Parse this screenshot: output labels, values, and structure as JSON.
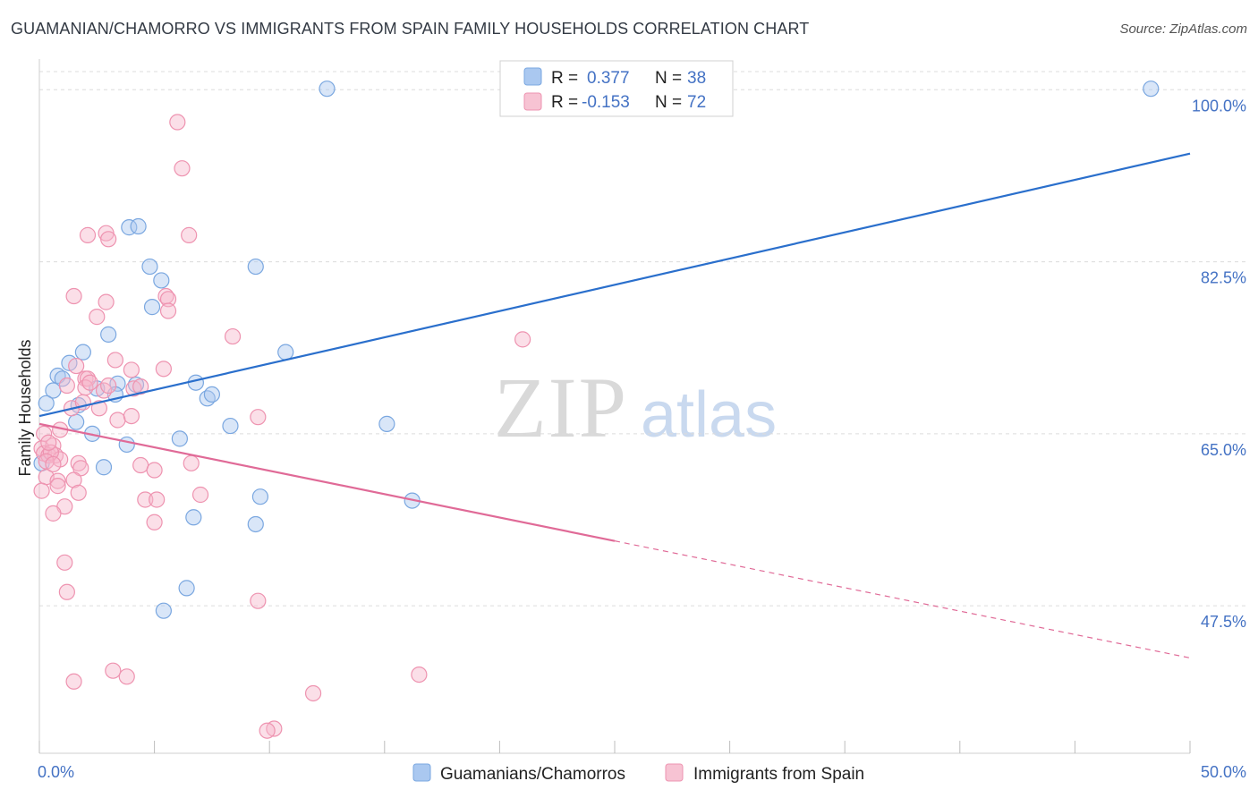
{
  "header": {
    "title": "GUAMANIAN/CHAMORRO VS IMMIGRANTS FROM SPAIN FAMILY HOUSEHOLDS CORRELATION CHART",
    "source": "Source: ZipAtlas.com"
  },
  "watermark": {
    "zip": "ZIP",
    "atlas": "atlas"
  },
  "legend": {
    "rows": [
      {
        "r_label": "R =",
        "r_value": "0.377",
        "n_label": "N =",
        "n_value": "38",
        "color": "#8fb4e8"
      },
      {
        "r_label": "R =",
        "r_value": "-0.153",
        "n_label": "N =",
        "n_value": "72",
        "color": "#f4a8c0"
      }
    ]
  },
  "colors": {
    "blue_fill": "#aac8f0",
    "blue_stroke": "#7aa7e0",
    "blue_line": "#2a6fcc",
    "pink_fill": "#f7b9cb",
    "pink_stroke": "#ee93b0",
    "pink_line": "#e06a97",
    "tick": "#4472c4"
  },
  "chart_data": {
    "type": "scatter",
    "title": "GUAMANIAN/CHAMORRO VS IMMIGRANTS FROM SPAIN FAMILY HOUSEHOLDS CORRELATION CHART",
    "xlabel": "",
    "ylabel": "Family Households",
    "xlim": [
      0,
      50
    ],
    "ylim": [
      32.5,
      103.3
    ],
    "x_tick_labels": [
      "0.0%",
      "50.0%"
    ],
    "y_ticks": [
      47.5,
      65.0,
      82.5,
      100.0
    ],
    "y_tick_labels": [
      "47.5%",
      "65.0%",
      "82.5%",
      "100.0%"
    ],
    "grid": true,
    "series": [
      {
        "name": "Guamanians/Chamorros",
        "color": "#8fb4e8",
        "R": 0.377,
        "N": 38,
        "trend": {
          "x0": 0,
          "y0": 66.8,
          "x1": 50,
          "y1": 93.5
        },
        "points": [
          [
            12.5,
            100.1
          ],
          [
            48.3,
            100.1
          ],
          [
            3.9,
            86.0
          ],
          [
            4.3,
            86.1
          ],
          [
            4.8,
            82.0
          ],
          [
            5.3,
            80.6
          ],
          [
            9.4,
            82.0
          ],
          [
            4.9,
            77.9
          ],
          [
            3.0,
            75.1
          ],
          [
            1.9,
            73.3
          ],
          [
            10.7,
            73.3
          ],
          [
            1.3,
            72.2
          ],
          [
            0.8,
            70.9
          ],
          [
            1.0,
            70.6
          ],
          [
            0.6,
            69.4
          ],
          [
            2.5,
            69.6
          ],
          [
            3.4,
            70.1
          ],
          [
            4.2,
            70.0
          ],
          [
            6.8,
            70.2
          ],
          [
            0.3,
            68.1
          ],
          [
            1.7,
            67.9
          ],
          [
            7.3,
            68.6
          ],
          [
            7.5,
            69.0
          ],
          [
            3.3,
            69.0
          ],
          [
            1.6,
            66.2
          ],
          [
            8.3,
            65.8
          ],
          [
            2.3,
            65.0
          ],
          [
            6.1,
            64.5
          ],
          [
            3.8,
            63.9
          ],
          [
            15.1,
            66.0
          ],
          [
            0.1,
            62.0
          ],
          [
            2.8,
            61.6
          ],
          [
            9.6,
            58.6
          ],
          [
            16.2,
            58.2
          ],
          [
            6.7,
            56.5
          ],
          [
            9.4,
            55.8
          ],
          [
            6.4,
            49.3
          ],
          [
            5.4,
            47.0
          ]
        ]
      },
      {
        "name": "Immigrants from Spain",
        "color": "#f4a8c0",
        "R": -0.153,
        "N": 72,
        "trend_solid": {
          "x0": 0,
          "y0": 66.0,
          "x1": 25,
          "y1": 54.1
        },
        "trend_dashed": {
          "x0": 25,
          "y0": 54.1,
          "x1": 50,
          "y1": 42.2
        },
        "points": [
          [
            6.0,
            96.7
          ],
          [
            6.2,
            92.0
          ],
          [
            2.1,
            85.2
          ],
          [
            2.9,
            85.4
          ],
          [
            3.0,
            84.8
          ],
          [
            6.5,
            85.2
          ],
          [
            1.5,
            79.0
          ],
          [
            2.9,
            78.4
          ],
          [
            5.5,
            79.0
          ],
          [
            5.6,
            78.7
          ],
          [
            5.6,
            77.5
          ],
          [
            2.5,
            76.9
          ],
          [
            8.4,
            74.9
          ],
          [
            21.0,
            74.6
          ],
          [
            3.3,
            72.5
          ],
          [
            1.6,
            71.9
          ],
          [
            4.0,
            71.5
          ],
          [
            5.4,
            71.6
          ],
          [
            2.0,
            70.6
          ],
          [
            2.1,
            70.6
          ],
          [
            1.2,
            69.9
          ],
          [
            2.0,
            69.7
          ],
          [
            2.8,
            69.4
          ],
          [
            4.1,
            69.6
          ],
          [
            1.4,
            67.6
          ],
          [
            2.6,
            67.6
          ],
          [
            3.4,
            66.4
          ],
          [
            4.0,
            66.8
          ],
          [
            9.5,
            66.7
          ],
          [
            0.2,
            65.0
          ],
          [
            0.9,
            65.4
          ],
          [
            0.1,
            63.5
          ],
          [
            0.6,
            63.8
          ],
          [
            0.2,
            63.0
          ],
          [
            0.4,
            62.8
          ],
          [
            0.7,
            62.8
          ],
          [
            0.9,
            62.4
          ],
          [
            1.7,
            62.0
          ],
          [
            1.8,
            61.5
          ],
          [
            4.4,
            61.8
          ],
          [
            5.0,
            61.3
          ],
          [
            6.6,
            62.0
          ],
          [
            0.3,
            60.6
          ],
          [
            0.8,
            60.2
          ],
          [
            1.5,
            60.3
          ],
          [
            0.1,
            59.2
          ],
          [
            0.8,
            59.7
          ],
          [
            1.7,
            59.0
          ],
          [
            4.6,
            58.3
          ],
          [
            5.1,
            58.3
          ],
          [
            7.0,
            58.8
          ],
          [
            1.1,
            57.6
          ],
          [
            0.6,
            56.9
          ],
          [
            5.0,
            56.0
          ],
          [
            1.1,
            51.9
          ],
          [
            1.2,
            48.9
          ],
          [
            9.5,
            48.0
          ],
          [
            3.2,
            40.9
          ],
          [
            1.5,
            39.8
          ],
          [
            3.8,
            40.3
          ],
          [
            11.9,
            38.6
          ],
          [
            16.5,
            40.5
          ],
          [
            10.2,
            35.0
          ],
          [
            9.9,
            34.8
          ],
          [
            0.5,
            63.1
          ],
          [
            0.3,
            62.2
          ],
          [
            0.6,
            61.9
          ],
          [
            2.2,
            70.2
          ],
          [
            3.0,
            69.9
          ],
          [
            4.4,
            69.8
          ],
          [
            1.9,
            68.2
          ],
          [
            0.4,
            64.1
          ]
        ]
      }
    ]
  },
  "bottom_legend": [
    {
      "label": "Guamanians/Chamorros"
    },
    {
      "label": "Immigrants from Spain"
    }
  ]
}
